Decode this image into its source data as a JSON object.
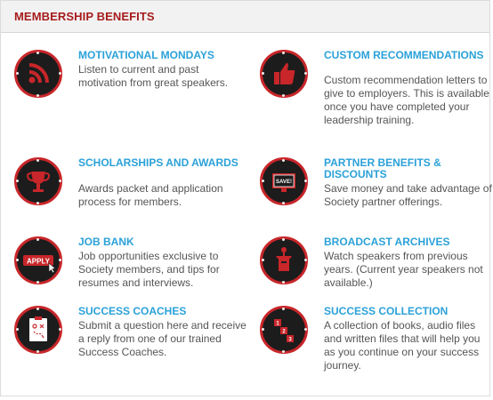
{
  "header": {
    "title": "MEMBERSHIP BENEFITS"
  },
  "benefits": [
    {
      "title": "MOTIVATIONAL MONDAYS",
      "desc": "Listen to current and past motivation from great speakers.",
      "icon": "rss-icon"
    },
    {
      "title": "CUSTOM RECOMMENDATIONS",
      "desc": "Custom recommendation letters to give to employers. This is available once you have completed your leadership training.",
      "icon": "thumbs-up-icon"
    },
    {
      "title": "SCHOLARSHIPS AND AWARDS",
      "desc": "Awards packet and application process for members.",
      "icon": "trophy-icon"
    },
    {
      "title": "PARTNER BENEFITS & DISCOUNTS",
      "desc": "Save money and take advantage of Society partner offerings.",
      "icon": "save-sign-icon"
    },
    {
      "title": "JOB BANK",
      "desc": "Job opportunities exclusive to Society members, and tips for resumes and interviews.",
      "icon": "apply-button-icon"
    },
    {
      "title": "BROADCAST ARCHIVES",
      "desc": "Watch speakers from previous years. (Current year speakers not available.)",
      "icon": "podium-icon"
    },
    {
      "title": "SUCCESS COACHES",
      "desc": "Submit a question here and receive a reply from one of our trained Success Coaches.",
      "icon": "clipboard-icon"
    },
    {
      "title": "SUCCESS COLLECTION",
      "desc": "A collection of books, audio files and written files that will help you as you continue on your success journey.",
      "icon": "numbered-blocks-icon"
    }
  ],
  "icon_labels": {
    "save": "SAVE!",
    "apply": "APPLY",
    "n1": "1",
    "n2": "2",
    "n3": "3"
  },
  "colors": {
    "accent_red": "#a61c1c",
    "title_blue": "#2ba1d8",
    "icon_dark": "#1c1c1c",
    "ring_red": "#c8262a"
  }
}
